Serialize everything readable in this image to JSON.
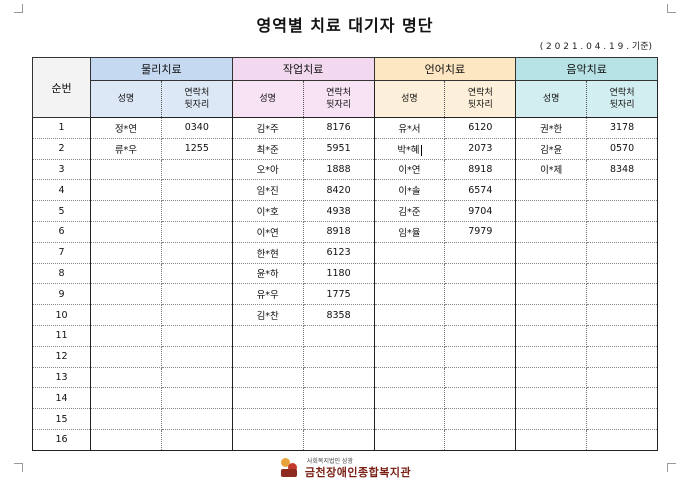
{
  "document": {
    "title": "영역별 치료 대기자 명단",
    "date_note": "( 2 0 2 1 . 0 4 . 1 9 . 기준)"
  },
  "table": {
    "seq_header": "순번",
    "groups": [
      {
        "label": "물리치료"
      },
      {
        "label": "작업치료"
      },
      {
        "label": "언어치료"
      },
      {
        "label": "음악치료"
      }
    ],
    "sub_headers": {
      "name": "성명",
      "contact_line1": "연락처",
      "contact_line2": "뒷자리"
    },
    "rows": [
      {
        "seq": "1",
        "cells": [
          "정*연",
          "0340",
          "김*주",
          "8176",
          "유*서",
          "6120",
          "권*한",
          "3178"
        ]
      },
      {
        "seq": "2",
        "cells": [
          "류*우",
          "1255",
          "최*준",
          "5951",
          "박*혜",
          "2073",
          "김*윤",
          "0570"
        ]
      },
      {
        "seq": "3",
        "cells": [
          "",
          "",
          "오*아",
          "1888",
          "이*연",
          "8918",
          "이*제",
          "8348"
        ]
      },
      {
        "seq": "4",
        "cells": [
          "",
          "",
          "임*진",
          "8420",
          "이*솔",
          "6574",
          "",
          ""
        ]
      },
      {
        "seq": "5",
        "cells": [
          "",
          "",
          "이*호",
          "4938",
          "김*준",
          "9704",
          "",
          ""
        ]
      },
      {
        "seq": "6",
        "cells": [
          "",
          "",
          "이*연",
          "8918",
          "임*율",
          "7979",
          "",
          ""
        ]
      },
      {
        "seq": "7",
        "cells": [
          "",
          "",
          "한*현",
          "6123",
          "",
          "",
          "",
          ""
        ]
      },
      {
        "seq": "8",
        "cells": [
          "",
          "",
          "윤*하",
          "1180",
          "",
          "",
          "",
          ""
        ]
      },
      {
        "seq": "9",
        "cells": [
          "",
          "",
          "유*우",
          "1775",
          "",
          "",
          "",
          ""
        ]
      },
      {
        "seq": "10",
        "cells": [
          "",
          "",
          "김*찬",
          "8358",
          "",
          "",
          "",
          ""
        ]
      },
      {
        "seq": "11",
        "cells": [
          "",
          "",
          "",
          "",
          "",
          "",
          "",
          ""
        ]
      },
      {
        "seq": "12",
        "cells": [
          "",
          "",
          "",
          "",
          "",
          "",
          "",
          ""
        ]
      },
      {
        "seq": "13",
        "cells": [
          "",
          "",
          "",
          "",
          "",
          "",
          "",
          ""
        ]
      },
      {
        "seq": "14",
        "cells": [
          "",
          "",
          "",
          "",
          "",
          "",
          "",
          ""
        ]
      },
      {
        "seq": "15",
        "cells": [
          "",
          "",
          "",
          "",
          "",
          "",
          "",
          ""
        ]
      },
      {
        "seq": "16",
        "cells": [
          "",
          "",
          "",
          "",
          "",
          "",
          "",
          ""
        ]
      }
    ]
  },
  "footer": {
    "org_type": "사회복지법인 삼광",
    "org_name": "금천장애인종합복지관",
    "logo_icon": "org-logo-icon"
  },
  "colors": {
    "physical": "#c5d9f1",
    "occupational": "#f2d9f0",
    "speech": "#fde6c2",
    "music": "#b8e3e6"
  }
}
